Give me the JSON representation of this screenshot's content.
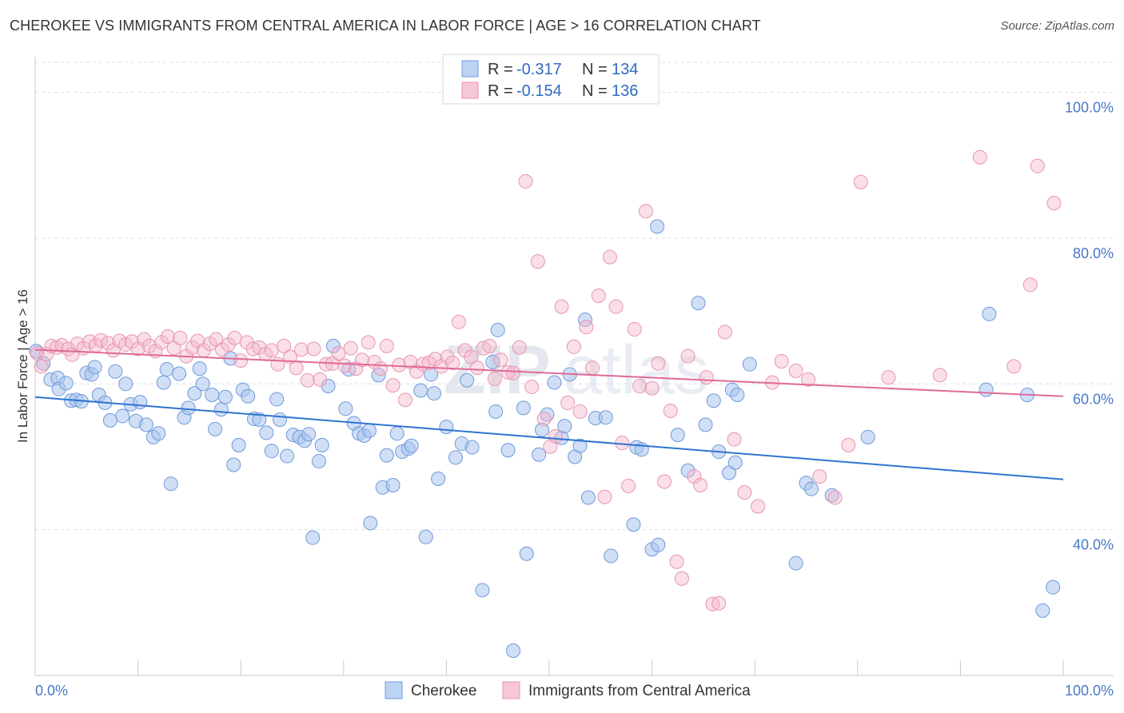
{
  "title": "CHEROKEE VS IMMIGRANTS FROM CENTRAL AMERICA IN LABOR FORCE | AGE > 16 CORRELATION CHART",
  "source": "Source: ZipAtlas.com",
  "watermark": {
    "zip": "ZIP",
    "atlas": "atlas"
  },
  "legend": {
    "entries": [
      {
        "r_label": "R =",
        "r_value": "-0.317",
        "n_label": "N =",
        "n_value": "134"
      },
      {
        "r_label": "R =",
        "r_value": "-0.154",
        "n_label": "N =",
        "n_value": "136"
      }
    ]
  },
  "colors": {
    "blue": "#6f9ad9",
    "pink": "#e695b1",
    "blue_line": "#2f74d0",
    "pink_line": "#e06a97"
  },
  "chart_data": {
    "type": "scatter",
    "title": "CHEROKEE VS IMMIGRANTS FROM CENTRAL AMERICA IN LABOR FORCE | AGE > 16 CORRELATION CHART",
    "xlabel": "",
    "ylabel": "In Labor Force | Age > 16",
    "xlim": [
      0,
      100
    ],
    "ylim": [
      20,
      105
    ],
    "x_tick_labels": [
      "0.0%",
      "100.0%"
    ],
    "y_ticks": [
      40,
      60,
      80,
      100
    ],
    "y_tick_labels": [
      "40.0%",
      "60.0%",
      "80.0%",
      "100.0%"
    ],
    "grid": true,
    "legend_position": "top-center",
    "series": [
      {
        "name": "Cherokee",
        "trend": [
          [
            0,
            58.2
          ],
          [
            100,
            46.9
          ]
        ],
        "points": [
          [
            0.1,
            64.5
          ],
          [
            0.8,
            62.8
          ],
          [
            1.5,
            60.6
          ],
          [
            2.2,
            60.8
          ],
          [
            2.3,
            59.3
          ],
          [
            3.0,
            60.1
          ],
          [
            3.5,
            57.7
          ],
          [
            4.0,
            57.8
          ],
          [
            4.5,
            57.6
          ],
          [
            5.0,
            61.5
          ],
          [
            5.5,
            61.3
          ],
          [
            5.8,
            62.3
          ],
          [
            6.2,
            58.5
          ],
          [
            6.8,
            57.4
          ],
          [
            7.3,
            55.0
          ],
          [
            7.8,
            61.7
          ],
          [
            8.5,
            55.6
          ],
          [
            8.8,
            60.0
          ],
          [
            9.3,
            57.2
          ],
          [
            9.8,
            54.9
          ],
          [
            10.2,
            57.5
          ],
          [
            10.8,
            54.4
          ],
          [
            11.5,
            52.7
          ],
          [
            12.0,
            53.2
          ],
          [
            12.5,
            60.2
          ],
          [
            12.8,
            62.0
          ],
          [
            13.2,
            46.3
          ],
          [
            14.0,
            61.4
          ],
          [
            14.5,
            55.4
          ],
          [
            14.9,
            56.7
          ],
          [
            15.5,
            58.7
          ],
          [
            16.0,
            62.1
          ],
          [
            16.3,
            60.0
          ],
          [
            17.2,
            58.5
          ],
          [
            17.5,
            53.8
          ],
          [
            18.1,
            56.5
          ],
          [
            18.5,
            58.2
          ],
          [
            19.0,
            63.5
          ],
          [
            19.3,
            48.9
          ],
          [
            19.8,
            51.6
          ],
          [
            20.2,
            59.2
          ],
          [
            20.7,
            58.3
          ],
          [
            21.3,
            55.2
          ],
          [
            21.8,
            55.1
          ],
          [
            22.5,
            53.3
          ],
          [
            23.0,
            50.8
          ],
          [
            23.5,
            57.9
          ],
          [
            23.8,
            55.1
          ],
          [
            24.5,
            50.1
          ],
          [
            25.1,
            53.0
          ],
          [
            25.7,
            52.7
          ],
          [
            26.2,
            52.2
          ],
          [
            26.6,
            53.1
          ],
          [
            27.0,
            38.9
          ],
          [
            27.6,
            49.4
          ],
          [
            27.9,
            51.6
          ],
          [
            28.5,
            59.7
          ],
          [
            29.0,
            65.2
          ],
          [
            30.2,
            56.6
          ],
          [
            30.5,
            62.0
          ],
          [
            31.0,
            54.6
          ],
          [
            31.5,
            53.2
          ],
          [
            32.0,
            52.9
          ],
          [
            32.5,
            53.6
          ],
          [
            32.6,
            40.9
          ],
          [
            33.4,
            61.2
          ],
          [
            33.8,
            45.8
          ],
          [
            34.2,
            50.2
          ],
          [
            34.8,
            46.1
          ],
          [
            35.2,
            53.2
          ],
          [
            35.7,
            50.7
          ],
          [
            36.3,
            51.1
          ],
          [
            36.6,
            51.5
          ],
          [
            37.5,
            59.1
          ],
          [
            38.0,
            39.0
          ],
          [
            38.5,
            61.3
          ],
          [
            38.8,
            58.7
          ],
          [
            39.2,
            47.0
          ],
          [
            40.0,
            54.1
          ],
          [
            40.9,
            49.9
          ],
          [
            41.5,
            51.8
          ],
          [
            42.0,
            60.5
          ],
          [
            42.5,
            51.3
          ],
          [
            43.5,
            31.7
          ],
          [
            44.5,
            63.0
          ],
          [
            44.8,
            56.2
          ],
          [
            45.0,
            67.4
          ],
          [
            46.0,
            50.9
          ],
          [
            46.5,
            23.4
          ],
          [
            47.5,
            56.7
          ],
          [
            47.8,
            36.7
          ],
          [
            49.0,
            50.3
          ],
          [
            49.3,
            53.7
          ],
          [
            49.8,
            55.8
          ],
          [
            50.5,
            60.2
          ],
          [
            51.2,
            52.6
          ],
          [
            51.5,
            54.2
          ],
          [
            52.0,
            61.3
          ],
          [
            52.5,
            50.0
          ],
          [
            53.0,
            51.5
          ],
          [
            53.5,
            68.8
          ],
          [
            53.8,
            44.4
          ],
          [
            54.5,
            55.3
          ],
          [
            55.5,
            55.4
          ],
          [
            56.0,
            36.4
          ],
          [
            58.2,
            40.7
          ],
          [
            58.5,
            51.3
          ],
          [
            59.0,
            51.0
          ],
          [
            60.0,
            37.3
          ],
          [
            60.5,
            81.6
          ],
          [
            60.6,
            37.9
          ],
          [
            62.5,
            53.0
          ],
          [
            63.5,
            48.1
          ],
          [
            64.5,
            71.1
          ],
          [
            65.2,
            54.4
          ],
          [
            66.0,
            57.7
          ],
          [
            66.5,
            50.7
          ],
          [
            67.5,
            47.8
          ],
          [
            67.8,
            59.2
          ],
          [
            68.1,
            49.2
          ],
          [
            68.3,
            58.5
          ],
          [
            69.5,
            62.7
          ],
          [
            74.0,
            35.4
          ],
          [
            75.0,
            46.4
          ],
          [
            75.5,
            45.6
          ],
          [
            77.5,
            44.7
          ],
          [
            81.0,
            52.7
          ],
          [
            92.5,
            59.2
          ],
          [
            92.8,
            69.6
          ],
          [
            96.5,
            58.5
          ],
          [
            98.0,
            28.9
          ],
          [
            99.0,
            32.1
          ]
        ]
      },
      {
        "name": "Immigrants from Central America",
        "trend": [
          [
            0,
            64.7
          ],
          [
            100,
            58.3
          ]
        ],
        "points": [
          [
            0.2,
            64.2
          ],
          [
            0.6,
            62.4
          ],
          [
            1.1,
            64.1
          ],
          [
            1.6,
            65.2
          ],
          [
            2.1,
            65.0
          ],
          [
            2.6,
            65.3
          ],
          [
            3.2,
            64.8
          ],
          [
            3.6,
            64.0
          ],
          [
            4.1,
            65.5
          ],
          [
            4.7,
            64.9
          ],
          [
            5.3,
            65.8
          ],
          [
            5.9,
            65.3
          ],
          [
            6.4,
            66.0
          ],
          [
            7.1,
            65.6
          ],
          [
            7.6,
            64.6
          ],
          [
            8.2,
            65.9
          ],
          [
            8.8,
            65.4
          ],
          [
            9.4,
            65.8
          ],
          [
            10.0,
            64.8
          ],
          [
            10.6,
            66.1
          ],
          [
            11.1,
            65.2
          ],
          [
            11.7,
            64.5
          ],
          [
            12.3,
            65.7
          ],
          [
            12.9,
            66.5
          ],
          [
            13.5,
            64.9
          ],
          [
            14.1,
            66.3
          ],
          [
            14.7,
            63.8
          ],
          [
            15.3,
            65.0
          ],
          [
            15.8,
            65.9
          ],
          [
            16.4,
            64.6
          ],
          [
            17.0,
            65.5
          ],
          [
            17.6,
            66.1
          ],
          [
            18.2,
            64.7
          ],
          [
            18.8,
            65.4
          ],
          [
            19.4,
            66.3
          ],
          [
            20.0,
            63.2
          ],
          [
            20.6,
            65.7
          ],
          [
            21.2,
            64.8
          ],
          [
            21.8,
            65.0
          ],
          [
            22.4,
            64.1
          ],
          [
            23.0,
            64.6
          ],
          [
            23.6,
            62.7
          ],
          [
            24.2,
            65.2
          ],
          [
            24.8,
            63.7
          ],
          [
            25.4,
            62.2
          ],
          [
            25.9,
            64.7
          ],
          [
            26.5,
            60.5
          ],
          [
            27.1,
            64.8
          ],
          [
            27.7,
            60.6
          ],
          [
            28.3,
            62.7
          ],
          [
            28.9,
            62.8
          ],
          [
            29.5,
            64.2
          ],
          [
            30.1,
            62.5
          ],
          [
            30.7,
            64.9
          ],
          [
            31.2,
            62.1
          ],
          [
            31.8,
            63.3
          ],
          [
            32.4,
            65.7
          ],
          [
            33.0,
            63.0
          ],
          [
            33.6,
            62.1
          ],
          [
            34.2,
            65.2
          ],
          [
            34.8,
            59.8
          ],
          [
            35.4,
            62.6
          ],
          [
            36.0,
            57.8
          ],
          [
            36.5,
            63.0
          ],
          [
            37.1,
            61.7
          ],
          [
            37.7,
            62.7
          ],
          [
            38.3,
            62.9
          ],
          [
            38.9,
            63.4
          ],
          [
            39.5,
            62.4
          ],
          [
            40.1,
            63.7
          ],
          [
            40.6,
            62.9
          ],
          [
            41.2,
            68.5
          ],
          [
            41.8,
            64.6
          ],
          [
            42.4,
            63.7
          ],
          [
            43.0,
            62.2
          ],
          [
            43.6,
            64.9
          ],
          [
            44.2,
            65.2
          ],
          [
            44.7,
            60.7
          ],
          [
            45.3,
            63.3
          ],
          [
            46.0,
            61.6
          ],
          [
            46.5,
            61.5
          ],
          [
            47.1,
            65.0
          ],
          [
            47.7,
            87.8
          ],
          [
            48.3,
            59.6
          ],
          [
            48.9,
            76.8
          ],
          [
            49.5,
            55.2
          ],
          [
            50.1,
            51.4
          ],
          [
            50.6,
            52.8
          ],
          [
            51.2,
            70.6
          ],
          [
            51.8,
            57.4
          ],
          [
            52.4,
            65.1
          ],
          [
            53.0,
            56.2
          ],
          [
            53.6,
            67.8
          ],
          [
            54.2,
            62.2
          ],
          [
            54.8,
            72.1
          ],
          [
            55.4,
            44.5
          ],
          [
            55.9,
            77.4
          ],
          [
            56.5,
            70.6
          ],
          [
            57.1,
            51.9
          ],
          [
            57.7,
            46.0
          ],
          [
            58.3,
            67.5
          ],
          [
            58.8,
            59.7
          ],
          [
            59.4,
            83.7
          ],
          [
            60.0,
            59.4
          ],
          [
            60.6,
            62.8
          ],
          [
            61.2,
            46.6
          ],
          [
            61.8,
            56.3
          ],
          [
            62.4,
            35.6
          ],
          [
            62.9,
            33.3
          ],
          [
            63.5,
            63.8
          ],
          [
            64.1,
            47.3
          ],
          [
            64.7,
            46.1
          ],
          [
            65.3,
            60.9
          ],
          [
            65.9,
            29.8
          ],
          [
            66.5,
            29.9
          ],
          [
            67.1,
            67.1
          ],
          [
            68.0,
            52.4
          ],
          [
            69.0,
            45.1
          ],
          [
            70.3,
            43.2
          ],
          [
            71.7,
            60.2
          ],
          [
            72.6,
            63.1
          ],
          [
            74.0,
            61.8
          ],
          [
            75.2,
            60.6
          ],
          [
            76.3,
            47.3
          ],
          [
            77.8,
            44.4
          ],
          [
            79.1,
            51.6
          ],
          [
            80.3,
            87.7
          ],
          [
            83.0,
            60.9
          ],
          [
            88.0,
            61.2
          ],
          [
            91.9,
            91.1
          ],
          [
            95.2,
            62.4
          ],
          [
            96.8,
            73.6
          ],
          [
            97.5,
            89.9
          ],
          [
            99.1,
            84.8
          ]
        ]
      }
    ]
  }
}
